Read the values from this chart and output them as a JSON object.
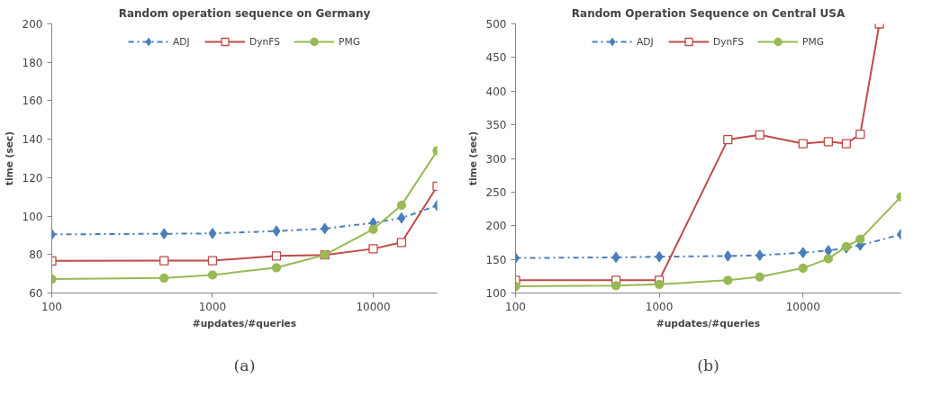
{
  "chart_data": [
    {
      "type": "line",
      "title": "Random operation sequence on Germany",
      "xlabel": "#updates/#queries",
      "ylabel": "time (sec)",
      "log": "x",
      "x": [
        100,
        500,
        1000,
        2500,
        5000,
        10000,
        15000,
        25000
      ],
      "series": [
        {
          "name": "ADJ",
          "color": "#4a7ebb",
          "marker": "diamond",
          "line_style": "dashdot",
          "values": [
            90.5,
            90.8,
            91,
            92.2,
            93.5,
            96.5,
            99,
            105.5
          ]
        },
        {
          "name": "DynFS",
          "color": "#be4b48",
          "marker": "square",
          "line_style": "solid",
          "values": [
            76.7,
            76.8,
            76.8,
            79.3,
            79.8,
            83,
            86.3,
            115.5
          ]
        },
        {
          "name": "PMG",
          "color": "#98b954",
          "marker": "circle",
          "line_style": "solid",
          "values": [
            67.2,
            67.8,
            69.4,
            73.2,
            79.8,
            93.2,
            105.7,
            134
          ]
        }
      ],
      "xlim": [
        100,
        25000
      ],
      "xticks": [
        100,
        1000,
        10000
      ],
      "ylim": [
        60,
        200
      ],
      "yticks": [
        60,
        80,
        100,
        120,
        140,
        160,
        180,
        200
      ],
      "grid": false,
      "legend": "top",
      "annotations": [
        "(a)"
      ]
    },
    {
      "type": "line",
      "title": "Random Operation Sequence on Central USA",
      "xlabel": "#updates/#queries",
      "ylabel": "time (sec)",
      "log": "x",
      "x": [
        100,
        500,
        1000,
        3000,
        5000,
        10000,
        15000,
        20000,
        25000,
        48000
      ],
      "series": [
        {
          "name": "ADJ",
          "color": "#4a7ebb",
          "marker": "diamond",
          "line_style": "dashdot",
          "values": [
            152,
            153,
            154,
            155,
            156,
            160,
            163,
            167,
            171,
            187
          ]
        },
        {
          "name": "DynFS",
          "color": "#be4b48",
          "marker": "square",
          "line_style": "solid",
          "x": [
            100,
            500,
            1000,
            3000,
            5000,
            10000,
            15000,
            20000,
            25000,
            34000
          ],
          "values": [
            119,
            119,
            119,
            328,
            335,
            322,
            325,
            322,
            336,
            500
          ]
        },
        {
          "name": "PMG",
          "color": "#98b954",
          "marker": "circle",
          "line_style": "solid",
          "values": [
            110,
            111,
            113,
            119,
            124,
            137,
            151,
            169,
            180,
            243
          ]
        }
      ],
      "xlim": [
        100,
        48000
      ],
      "xticks": [
        100,
        1000,
        10000
      ],
      "ylim": [
        100,
        500
      ],
      "yticks": [
        100,
        150,
        200,
        250,
        300,
        350,
        400,
        450,
        500
      ],
      "grid": false,
      "legend": "top",
      "annotations": [
        "(b)"
      ]
    }
  ]
}
